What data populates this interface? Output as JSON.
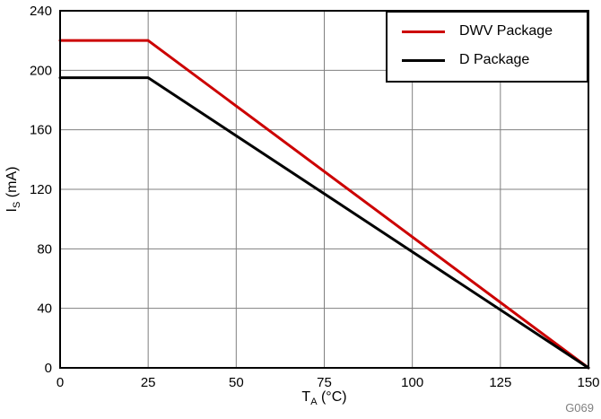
{
  "figure": {
    "annotation": "G069"
  },
  "axes": {
    "x": {
      "base": "T",
      "sub": "A",
      "unit": " (°C)"
    },
    "y": {
      "base": "I",
      "sub": "S",
      "unit": " (mA)"
    }
  },
  "colors": {
    "grid": "#808080",
    "border": "#000000",
    "background": "#ffffff",
    "annotation": "#808080",
    "series_red": "#cc0000",
    "series_black": "#000000"
  },
  "chart_data": {
    "type": "line",
    "title": "",
    "xlabel": "T_A (°C)",
    "ylabel": "I_S (mA)",
    "xlim": [
      0,
      150
    ],
    "ylim": [
      0,
      240
    ],
    "xticks": [
      0,
      25,
      50,
      75,
      100,
      125,
      150
    ],
    "yticks": [
      0,
      40,
      80,
      120,
      160,
      200,
      240
    ],
    "grid": true,
    "legend_position": "top-right",
    "series": [
      {
        "name": "DWV Package",
        "color": "#cc0000",
        "x": [
          0,
          25,
          150
        ],
        "y": [
          220,
          220,
          0
        ]
      },
      {
        "name": "D Package",
        "color": "#000000",
        "x": [
          0,
          25,
          150
        ],
        "y": [
          195,
          195,
          0
        ]
      }
    ],
    "annotation": "G069"
  }
}
